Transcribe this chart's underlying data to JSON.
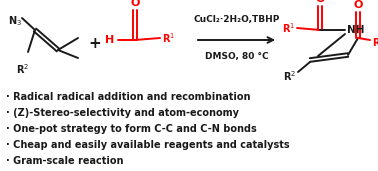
{
  "bg_color": "#ffffff",
  "red_color": "#ff0000",
  "blk_color": "#1a1a1a",
  "bullet_points": [
    "Radical radical addition and recombination",
    "(Z)-Stereo-selectivity and atom-economy",
    "One-pot strategy to form C-C and C-N bonds",
    "Cheap and easily available reagents and catalysts",
    "Gram-scale reaction"
  ],
  "condition_line1": "CuCl₂·2H₂O,TBHP",
  "condition_line2": "DMSO, 80 °C",
  "figsize": [
    3.78,
    1.71
  ],
  "dpi": 100
}
